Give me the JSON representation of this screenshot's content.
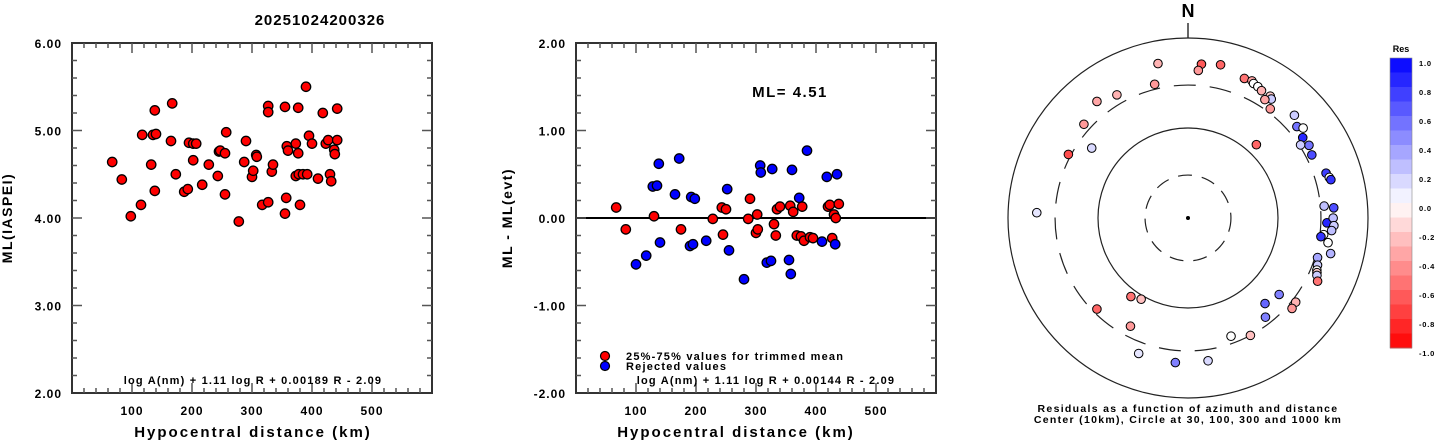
{
  "title": "20251024200326",
  "chart_data": [
    {
      "type": "scatter",
      "name": "ml-vs-distance",
      "xlabel": "Hypocentral distance (km)",
      "ylabel": "ML(IASPEI)",
      "xlim": [
        0,
        600
      ],
      "ylim": [
        2.0,
        6.0
      ],
      "xticks": [
        "100",
        "200",
        "300",
        "400",
        "500"
      ],
      "yticks": [
        "2.00",
        "3.00",
        "4.00",
        "5.00",
        "6.00"
      ],
      "annotation": "log A(nm) + 1.11 log R + 0.00189 R - 2.09",
      "point_color": "#ff0000",
      "points": [
        [
          67,
          4.64
        ],
        [
          83,
          4.44
        ],
        [
          98,
          4.02
        ],
        [
          115,
          4.15
        ],
        [
          117,
          4.95
        ],
        [
          132,
          4.61
        ],
        [
          135,
          4.95
        ],
        [
          138,
          5.23
        ],
        [
          140,
          4.96
        ],
        [
          138,
          4.31
        ],
        [
          165,
          4.88
        ],
        [
          167,
          5.31
        ],
        [
          173,
          4.5
        ],
        [
          187,
          4.3
        ],
        [
          193,
          4.33
        ],
        [
          195,
          4.86
        ],
        [
          202,
          4.66
        ],
        [
          202,
          4.85
        ],
        [
          207,
          4.85
        ],
        [
          217,
          4.38
        ],
        [
          228,
          4.61
        ],
        [
          243,
          4.48
        ],
        [
          245,
          4.76
        ],
        [
          247,
          4.77
        ],
        [
          255,
          4.27
        ],
        [
          255,
          4.74
        ],
        [
          257,
          4.98
        ],
        [
          278,
          3.96
        ],
        [
          287,
          4.64
        ],
        [
          290,
          4.88
        ],
        [
          300,
          4.47
        ],
        [
          302,
          4.54
        ],
        [
          307,
          4.72
        ],
        [
          308,
          4.7
        ],
        [
          317,
          4.15
        ],
        [
          327,
          4.18
        ],
        [
          327,
          5.28
        ],
        [
          327,
          5.21
        ],
        [
          333,
          4.53
        ],
        [
          335,
          4.61
        ],
        [
          355,
          5.27
        ],
        [
          355,
          4.05
        ],
        [
          357,
          4.23
        ],
        [
          358,
          4.82
        ],
        [
          360,
          4.77
        ],
        [
          373,
          4.85
        ],
        [
          373,
          4.48
        ],
        [
          377,
          5.26
        ],
        [
          377,
          4.74
        ],
        [
          378,
          4.5
        ],
        [
          380,
          4.15
        ],
        [
          385,
          4.5
        ],
        [
          390,
          5.5
        ],
        [
          392,
          4.5
        ],
        [
          395,
          4.94
        ],
        [
          400,
          4.85
        ],
        [
          410,
          4.45
        ],
        [
          418,
          5.2
        ],
        [
          423,
          4.85
        ],
        [
          427,
          4.89
        ],
        [
          430,
          4.5
        ],
        [
          432,
          4.42
        ],
        [
          437,
          4.78
        ],
        [
          438,
          4.73
        ],
        [
          442,
          5.25
        ],
        [
          442,
          4.89
        ]
      ]
    },
    {
      "type": "scatter",
      "name": "residual-vs-distance",
      "xlabel": "Hypocentral distance (km)",
      "ylabel": "ML - ML(evt)",
      "xlim": [
        0,
        600
      ],
      "ylim": [
        -2.0,
        2.0
      ],
      "xticks": [
        "100",
        "200",
        "300",
        "400",
        "500"
      ],
      "yticks": [
        "-2.00",
        "-1.00",
        "0.00",
        "1.00",
        "2.00"
      ],
      "ml_label": "ML= 4.51",
      "annotation": "log A(nm) + 1.11 log R + 0.00144 R - 2.09",
      "legend": [
        {
          "label": "25%-75% values for trimmed mean",
          "color": "#ff0000"
        },
        {
          "label": "Rejected values",
          "color": "#0000ff"
        }
      ],
      "legend_position": "bottom-left",
      "points": [
        [
          67,
          0.12,
          "r"
        ],
        [
          83,
          -0.13,
          "r"
        ],
        [
          100,
          -0.53,
          "b"
        ],
        [
          117,
          -0.43,
          "b"
        ],
        [
          128,
          0.36,
          "b"
        ],
        [
          130,
          0.02,
          "r"
        ],
        [
          135,
          0.37,
          "b"
        ],
        [
          138,
          0.62,
          "b"
        ],
        [
          140,
          -0.28,
          "b"
        ],
        [
          165,
          0.27,
          "b"
        ],
        [
          172,
          0.68,
          "b"
        ],
        [
          175,
          -0.13,
          "r"
        ],
        [
          190,
          -0.32,
          "b"
        ],
        [
          192,
          0.24,
          "b"
        ],
        [
          195,
          -0.3,
          "b"
        ],
        [
          198,
          0.22,
          "b"
        ],
        [
          217,
          -0.26,
          "b"
        ],
        [
          228,
          -0.01,
          "r"
        ],
        [
          243,
          0.12,
          "r"
        ],
        [
          245,
          -0.19,
          "r"
        ],
        [
          250,
          0.1,
          "r"
        ],
        [
          252,
          0.33,
          "b"
        ],
        [
          255,
          -0.37,
          "b"
        ],
        [
          280,
          -0.7,
          "b"
        ],
        [
          287,
          -0.01,
          "r"
        ],
        [
          290,
          0.22,
          "r"
        ],
        [
          300,
          -0.17,
          "r"
        ],
        [
          302,
          0.04,
          "r"
        ],
        [
          303,
          -0.13,
          "r"
        ],
        [
          307,
          0.6,
          "b"
        ],
        [
          308,
          0.52,
          "b"
        ],
        [
          318,
          -0.51,
          "b"
        ],
        [
          325,
          -0.49,
          "b"
        ],
        [
          327,
          0.56,
          "b"
        ],
        [
          330,
          -0.07,
          "r"
        ],
        [
          333,
          -0.2,
          "r"
        ],
        [
          335,
          0.1,
          "r"
        ],
        [
          340,
          0.13,
          "r"
        ],
        [
          355,
          -0.48,
          "b"
        ],
        [
          357,
          0.14,
          "r"
        ],
        [
          358,
          -0.64,
          "b"
        ],
        [
          360,
          0.55,
          "b"
        ],
        [
          362,
          0.07,
          "r"
        ],
        [
          368,
          -0.2,
          "r"
        ],
        [
          372,
          0.23,
          "b"
        ],
        [
          375,
          -0.21,
          "r"
        ],
        [
          377,
          0.13,
          "r"
        ],
        [
          380,
          -0.26,
          "r"
        ],
        [
          385,
          0.77,
          "b"
        ],
        [
          390,
          -0.22,
          "r"
        ],
        [
          395,
          -0.23,
          "r"
        ],
        [
          410,
          -0.27,
          "b"
        ],
        [
          418,
          0.47,
          "b"
        ],
        [
          420,
          0.13,
          "r"
        ],
        [
          423,
          0.15,
          "r"
        ],
        [
          427,
          -0.23,
          "r"
        ],
        [
          430,
          0.04,
          "r"
        ],
        [
          432,
          -0.3,
          "b"
        ],
        [
          433,
          0.0,
          "r"
        ],
        [
          435,
          0.5,
          "b"
        ],
        [
          438,
          0.16,
          "r"
        ]
      ]
    },
    {
      "type": "scatter",
      "name": "residual-azimuth-distance",
      "caption_lines": [
        "Residuals as a function of azimuth and distance",
        "Center (10km), Circle at 30, 100, 300 and 1000 km"
      ],
      "north_label": "N",
      "rings_km": [
        30,
        100,
        300,
        1000
      ],
      "colorbar": {
        "title": "Res",
        "ticks": [
          "1.0",
          "0.8",
          "0.6",
          "0.4",
          "0.2",
          "0.0",
          "-0.2",
          "-0.4",
          "-0.6",
          "-0.8",
          "-1.0"
        ],
        "range": [
          -1.0,
          1.0
        ],
        "pos_color": "#0000ff",
        "neg_color": "#ff0000"
      },
      "points_note": "azimuth_deg, distance_km, residual",
      "points": [
        [
          349,
          560,
          -0.3
        ],
        [
          5,
          520,
          -0.65
        ],
        [
          12,
          550,
          -0.6
        ],
        [
          4,
          440,
          -0.4
        ],
        [
          22,
          470,
          -0.55
        ],
        [
          25,
          480,
          -0.35
        ],
        [
          26,
          460,
          0.0
        ],
        [
          28,
          450,
          0.0
        ],
        [
          30,
          430,
          -0.3
        ],
        [
          34,
          430,
          -0.2
        ],
        [
          35,
          410,
          0.2
        ],
        [
          33,
          370,
          -0.35
        ],
        [
          37,
          330,
          -0.4
        ],
        [
          46,
          440,
          0.2
        ],
        [
          50,
          380,
          0.55
        ],
        [
          52,
          420,
          0.0
        ],
        [
          55,
          360,
          0.85
        ],
        [
          59,
          370,
          0.55
        ],
        [
          57,
          310,
          0.2
        ],
        [
          63,
          350,
          0.7
        ],
        [
          72,
          410,
          0.75
        ],
        [
          74,
          430,
          0.0
        ],
        [
          75,
          440,
          0.8
        ],
        [
          85,
          330,
          0.25
        ],
        [
          92,
          350,
          0.85
        ],
        [
          97,
          330,
          0.0
        ],
        [
          98,
          310,
          0.8
        ],
        [
          86,
          420,
          0.7
        ],
        [
          90,
          410,
          0.25
        ],
        [
          93,
          420,
          0.2
        ],
        [
          95,
          400,
          0.25
        ],
        [
          100,
          380,
          0.0
        ],
        [
          104,
          430,
          0.3
        ],
        [
          107,
          320,
          0.35
        ],
        [
          110,
          340,
          0.2
        ],
        [
          112,
          350,
          0.0
        ],
        [
          113,
          360,
          -0.2
        ],
        [
          114,
          370,
          0.2
        ],
        [
          116,
          400,
          -0.55
        ],
        [
          128,
          330,
          -0.3
        ],
        [
          131,
          340,
          -0.4
        ],
        [
          43,
          130,
          -0.6
        ],
        [
          306,
          210,
          0.15
        ],
        [
          298,
          320,
          -0.7
        ],
        [
          272,
          480,
          0.1
        ],
        [
          312,
          360,
          -0.4
        ],
        [
          322,
          440,
          -0.35
        ],
        [
          330,
          380,
          -0.3
        ],
        [
          346,
          340,
          -0.4
        ],
        [
          210,
          110,
          -0.25
        ],
        [
          216,
          120,
          -0.55
        ],
        [
          225,
          270,
          -0.6
        ],
        [
          208,
          230,
          -0.4
        ],
        [
          200,
          400,
          0.1
        ],
        [
          185,
          410,
          0.5
        ],
        [
          172,
          400,
          0.15
        ],
        [
          160,
          250,
          0.0
        ],
        [
          152,
          300,
          -0.25
        ],
        [
          142,
          250,
          0.5
        ],
        [
          138,
          190,
          0.6
        ],
        [
          130,
          210,
          0.5
        ]
      ]
    }
  ]
}
